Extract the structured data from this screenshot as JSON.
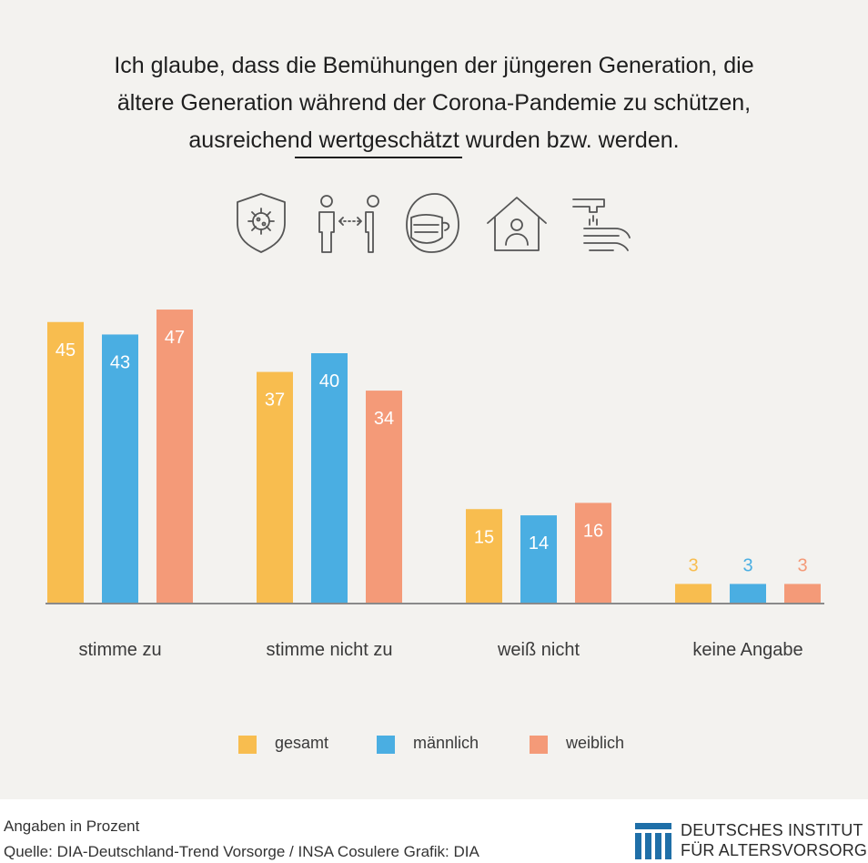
{
  "title": {
    "line1": "Ich glaube, dass die Bemühungen der jüngeren Generation, die",
    "line2": "ältere Generation während der Corona-Pandemie zu schützen,",
    "line3_before": "ausreichend ",
    "line3_emph": "wertgeschätzt",
    "line3_after": " wurden bzw. werden."
  },
  "icons": [
    "virus-shield-icon",
    "social-distance-icon",
    "face-mask-icon",
    "stay-home-icon",
    "hand-washing-icon"
  ],
  "chart_data": {
    "type": "bar",
    "categories": [
      "stimme zu",
      "stimme nicht zu",
      "weiß nicht",
      "keine Angabe"
    ],
    "series": [
      {
        "name": "gesamt",
        "values": [
          45,
          37,
          15,
          3
        ],
        "color": "#f8bd4f"
      },
      {
        "name": "männlich",
        "values": [
          43,
          40,
          14,
          3
        ],
        "color": "#4aaee2"
      },
      {
        "name": "weiblich",
        "values": [
          47,
          34,
          16,
          3
        ],
        "color": "#f49a78"
      }
    ],
    "ylim": [
      0,
      50
    ],
    "grid": false,
    "legend": "bottom"
  },
  "footer": {
    "note": "Angaben in Prozent",
    "source": "Quelle: DIA-Deutschland-Trend Vorsorge / INSA Cosulere  Grafik: DIA"
  },
  "logo": {
    "line1": "DEUTSCHES INSTITUT",
    "line2": "FÜR ALTERSVORSORGE",
    "color": "#1f6fa8"
  }
}
